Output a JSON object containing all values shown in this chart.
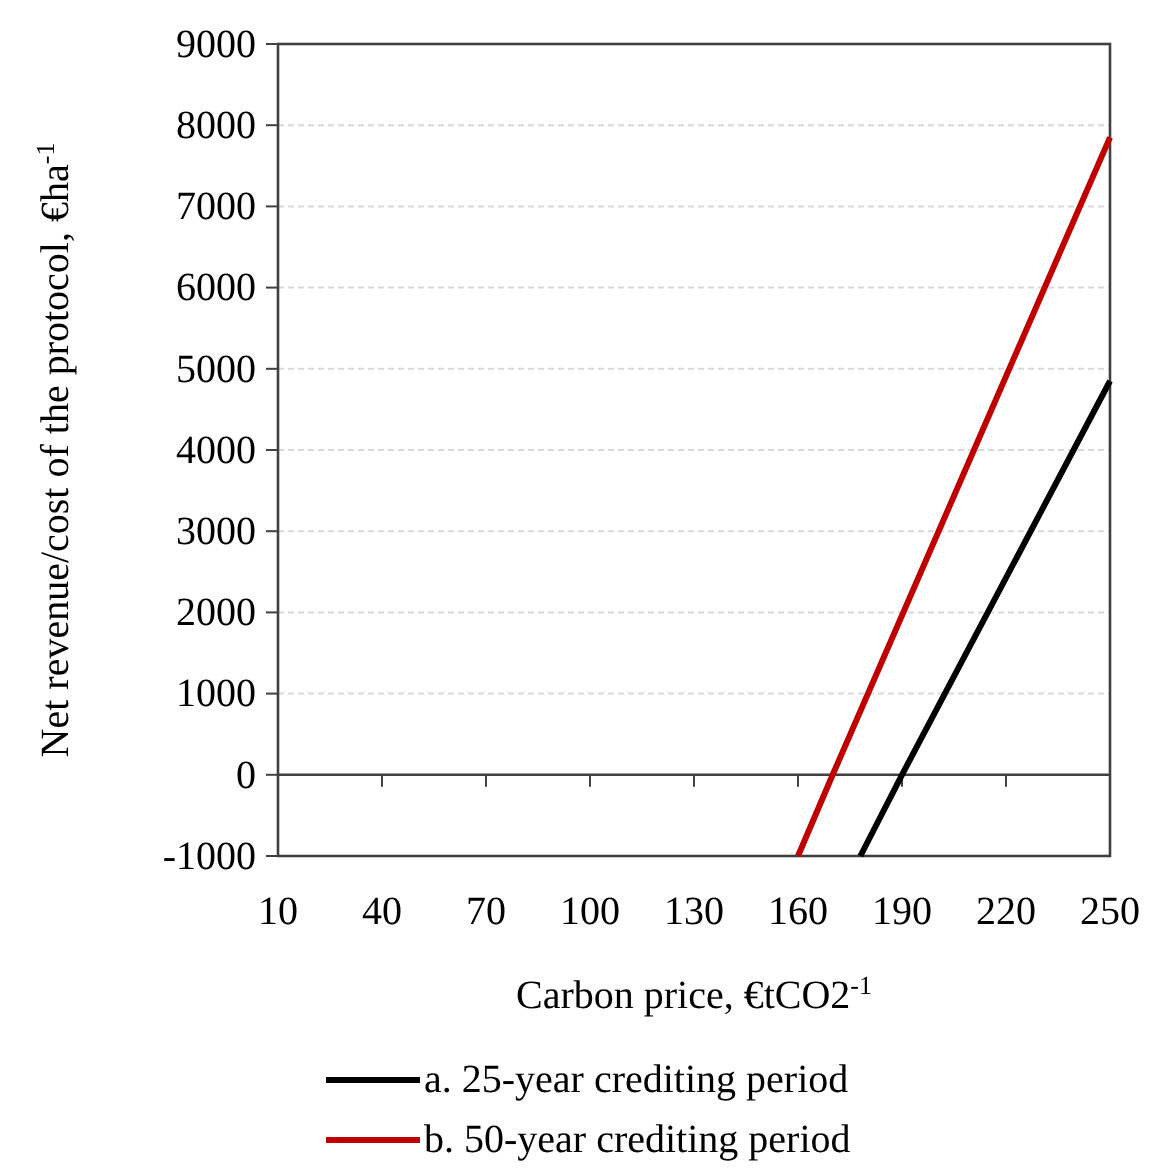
{
  "chart_data": {
    "type": "line",
    "xlabel": "Carbon price, €tCO2$^{-1}$",
    "ylabel": "Net revenue/cost of the protocol, €ha$^{-1}$",
    "xlim": [
      10,
      250
    ],
    "xticks": [
      10,
      40,
      70,
      100,
      130,
      160,
      190,
      220,
      250
    ],
    "ylim": [
      -1000,
      9000
    ],
    "yticks": [
      -1000,
      0,
      1000,
      2000,
      3000,
      4000,
      5000,
      6000,
      7000,
      8000,
      9000
    ],
    "grid": "y",
    "legend": "bottom",
    "marker": "none",
    "line_style": "solid",
    "series": [
      {
        "name": "a. 25-year crediting period",
        "color": "#000000",
        "x": [
          178,
          190,
          250
        ],
        "values": [
          -1000,
          0,
          4850
        ]
      },
      {
        "name": "b. 50-year crediting period",
        "color": "#c00000",
        "x": [
          160,
          170,
          250
        ],
        "values": [
          -1000,
          0,
          7850
        ]
      }
    ]
  }
}
